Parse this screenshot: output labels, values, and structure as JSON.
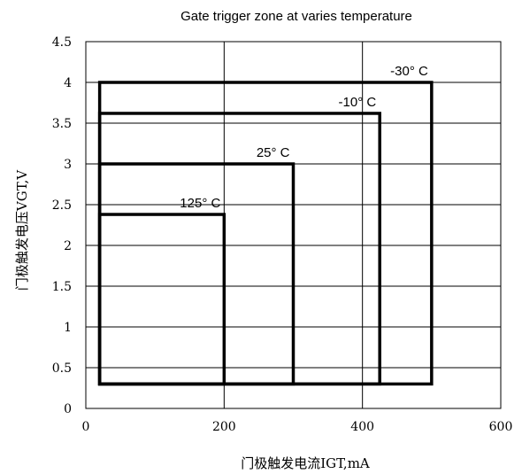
{
  "chart_data": {
    "type": "line",
    "title": "Gate trigger zone at varies temperature",
    "xlabel": "门极触发电流IGT,mA",
    "ylabel": "门极触发电压VGT,V",
    "xlim": [
      0,
      600
    ],
    "ylim": [
      0,
      4.5
    ],
    "x_ticks": [
      {
        "value": 0,
        "label": "0"
      },
      {
        "value": 200,
        "label": "200"
      },
      {
        "value": 400,
        "label": "400"
      },
      {
        "value": 600,
        "label": "600"
      }
    ],
    "y_ticks": [
      {
        "value": 0,
        "label": "0"
      },
      {
        "value": 0.5,
        "label": "0.5"
      },
      {
        "value": 1,
        "label": "1"
      },
      {
        "value": 1.5,
        "label": "1.5"
      },
      {
        "value": 2,
        "label": "2"
      },
      {
        "value": 2.5,
        "label": "2.5"
      },
      {
        "value": 3,
        "label": "3"
      },
      {
        "value": 3.5,
        "label": "3.5"
      },
      {
        "value": 4,
        "label": "4"
      },
      {
        "value": 4.5,
        "label": "4.5"
      }
    ],
    "grid": {
      "x": true,
      "y": true
    },
    "series": [
      {
        "name": "-30° C",
        "x_min": 20,
        "x_max": 500,
        "y_min": 0.3,
        "y_max": 4.0
      },
      {
        "name": "-10° C",
        "x_min": 20,
        "x_max": 425,
        "y_min": 0.3,
        "y_max": 3.62
      },
      {
        "name": "25° C",
        "x_min": 20,
        "x_max": 300,
        "y_min": 0.3,
        "y_max": 3.0
      },
      {
        "name": "125° C",
        "x_min": 20,
        "x_max": 200,
        "y_min": 0.3,
        "y_max": 2.38
      }
    ]
  }
}
